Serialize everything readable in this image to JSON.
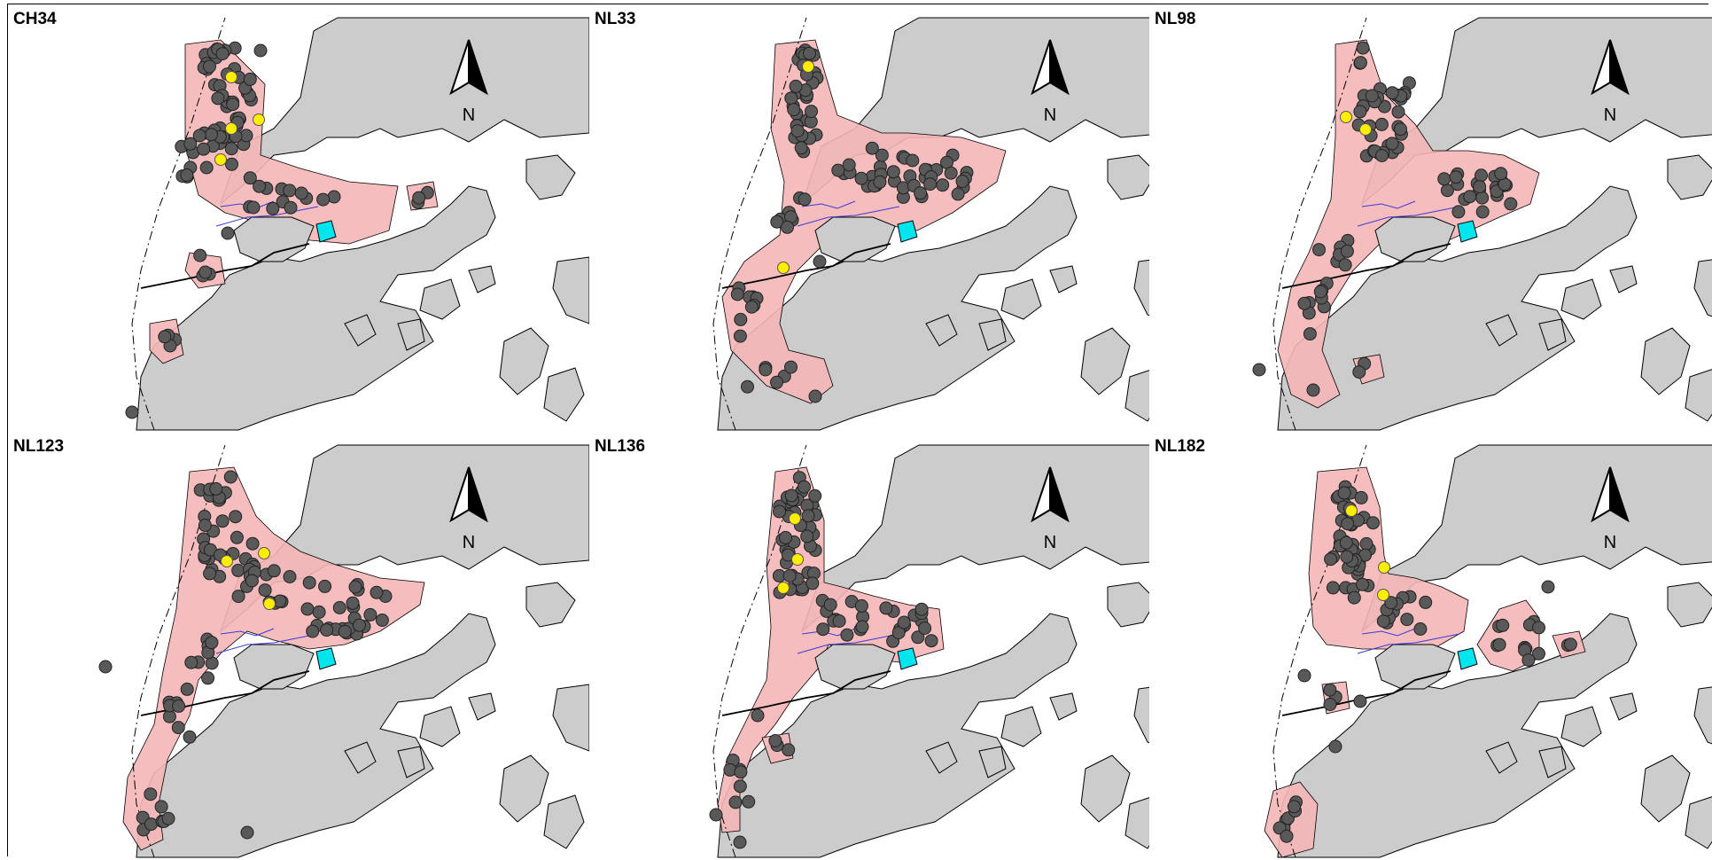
{
  "figure": {
    "north_label": "N",
    "colors": {
      "land": "#cccccc",
      "sea": "#ffffff",
      "buffer_fill": "#f4b6b6",
      "sighting_dot": "#595959",
      "highlight_dot": "#ffee00",
      "works_area": "#00e5ee",
      "boundary_line": "#3b3bd6"
    },
    "panels": [
      {
        "id": "CH34",
        "label": "CH34",
        "highlight_count": 4
      },
      {
        "id": "NL33",
        "label": "NL33",
        "highlight_count": 2
      },
      {
        "id": "NL98",
        "label": "NL98",
        "highlight_count": 2
      },
      {
        "id": "NL123",
        "label": "NL123",
        "highlight_count": 3
      },
      {
        "id": "NL136",
        "label": "NL136",
        "highlight_count": 3
      },
      {
        "id": "NL182",
        "label": "NL182",
        "highlight_count": 3
      }
    ]
  }
}
